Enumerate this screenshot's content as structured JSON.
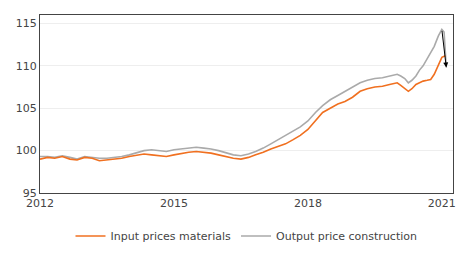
{
  "chart_data": {
    "type": "line",
    "xlim": [
      2012.0,
      2021.25
    ],
    "ylim": [
      95,
      116
    ],
    "xticks": [
      2012,
      2015,
      2018,
      2021
    ],
    "yticks": [
      95,
      100,
      105,
      110,
      115
    ],
    "grid": true,
    "legend": "bottom",
    "annotations": [
      {
        "x": 2021.1,
        "y": 109.8,
        "from_x": 2021.0,
        "from_y": 114.3
      }
    ],
    "series": [
      {
        "name": "Output price construction",
        "color": "#AAAAAA",
        "x": [
          2012.0,
          2012.17,
          2012.33,
          2012.5,
          2012.67,
          2012.83,
          2013.0,
          2013.17,
          2013.33,
          2013.5,
          2013.67,
          2013.83,
          2014.0,
          2014.17,
          2014.33,
          2014.5,
          2014.67,
          2014.83,
          2015.0,
          2015.17,
          2015.33,
          2015.5,
          2015.67,
          2015.83,
          2016.0,
          2016.17,
          2016.33,
          2016.5,
          2016.67,
          2016.83,
          2017.0,
          2017.17,
          2017.33,
          2017.5,
          2017.67,
          2017.83,
          2018.0,
          2018.17,
          2018.33,
          2018.5,
          2018.67,
          2018.83,
          2019.0,
          2019.17,
          2019.33,
          2019.5,
          2019.67,
          2019.83,
          2020.0,
          2020.08,
          2020.17,
          2020.25,
          2020.33,
          2020.42,
          2020.5,
          2020.58,
          2020.67,
          2020.75,
          2020.83,
          2020.92,
          2021.0,
          2021.05,
          2021.1
        ],
        "values": [
          99.3,
          99.3,
          99.2,
          99.4,
          99.2,
          99.0,
          99.3,
          99.2,
          99.1,
          99.1,
          99.2,
          99.3,
          99.5,
          99.8,
          100.0,
          100.1,
          100.0,
          99.9,
          100.1,
          100.2,
          100.3,
          100.4,
          100.3,
          100.2,
          100.0,
          99.7,
          99.5,
          99.4,
          99.6,
          99.9,
          100.3,
          100.8,
          101.3,
          101.8,
          102.3,
          102.8,
          103.5,
          104.5,
          105.3,
          106.0,
          106.5,
          107.0,
          107.5,
          108.0,
          108.3,
          108.5,
          108.6,
          108.8,
          109.0,
          108.8,
          108.5,
          108.0,
          108.3,
          108.8,
          109.5,
          110.0,
          110.8,
          111.5,
          112.3,
          113.5,
          114.3,
          114.0,
          109.8
        ]
      },
      {
        "name": "Input prices materials",
        "color": "#F07020",
        "x": [
          2012.0,
          2012.17,
          2012.33,
          2012.5,
          2012.67,
          2012.83,
          2013.0,
          2013.17,
          2013.33,
          2013.5,
          2013.67,
          2013.83,
          2014.0,
          2014.17,
          2014.33,
          2014.5,
          2014.67,
          2014.83,
          2015.0,
          2015.17,
          2015.33,
          2015.5,
          2015.67,
          2015.83,
          2016.0,
          2016.17,
          2016.33,
          2016.5,
          2016.67,
          2016.83,
          2017.0,
          2017.17,
          2017.33,
          2017.5,
          2017.67,
          2017.83,
          2018.0,
          2018.17,
          2018.33,
          2018.5,
          2018.67,
          2018.83,
          2019.0,
          2019.17,
          2019.33,
          2019.5,
          2019.67,
          2019.83,
          2020.0,
          2020.08,
          2020.17,
          2020.25,
          2020.33,
          2020.42,
          2020.5,
          2020.58,
          2020.67,
          2020.75,
          2020.83,
          2020.92,
          2021.0,
          2021.08
        ],
        "values": [
          99.0,
          99.2,
          99.1,
          99.3,
          99.0,
          98.9,
          99.2,
          99.1,
          98.8,
          98.9,
          99.0,
          99.1,
          99.3,
          99.5,
          99.6,
          99.5,
          99.4,
          99.3,
          99.5,
          99.7,
          99.8,
          99.9,
          99.8,
          99.7,
          99.5,
          99.3,
          99.1,
          99.0,
          99.2,
          99.5,
          99.8,
          100.2,
          100.5,
          100.8,
          101.3,
          101.8,
          102.5,
          103.5,
          104.5,
          105.0,
          105.5,
          105.8,
          106.3,
          107.0,
          107.3,
          107.5,
          107.6,
          107.8,
          108.0,
          107.7,
          107.3,
          107.0,
          107.3,
          107.8,
          108.0,
          108.2,
          108.3,
          108.4,
          109.0,
          110.0,
          111.0,
          111.2
        ]
      }
    ]
  }
}
